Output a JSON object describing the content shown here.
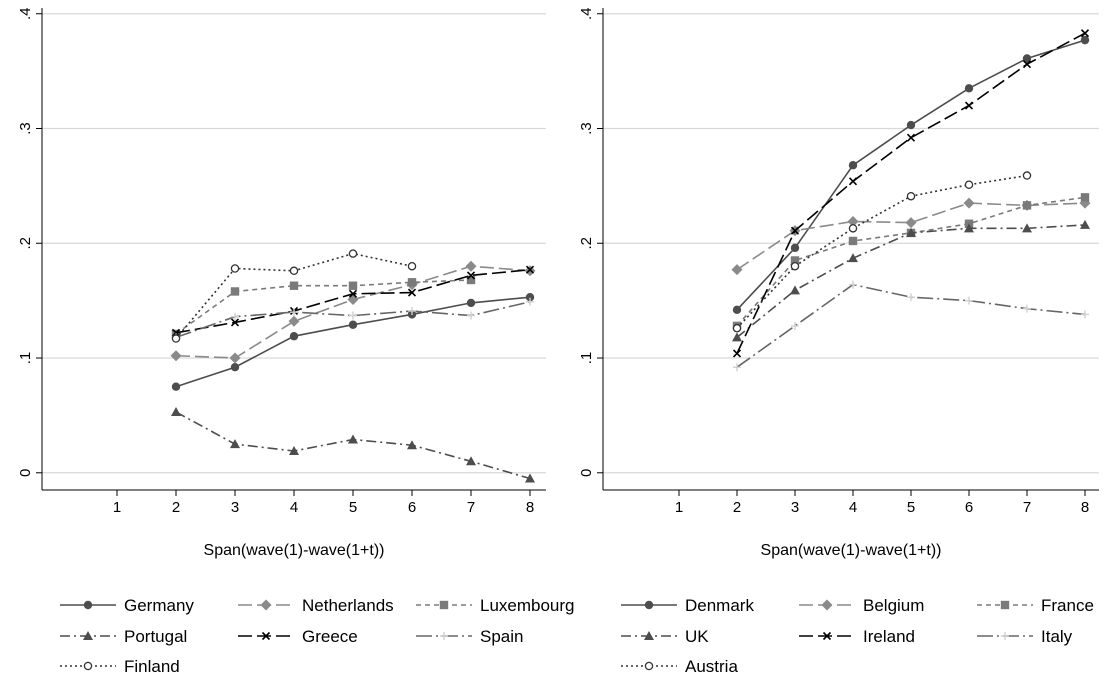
{
  "chart_data": [
    {
      "type": "line",
      "title": "",
      "xlabel": "Span(wave(1)-wave(1+t))",
      "ylabel": "",
      "xlim": [
        0,
        8
      ],
      "ylim": [
        -0.015,
        0.405
      ],
      "xticks": [
        1,
        2,
        3,
        4,
        5,
        6,
        7,
        8
      ],
      "xtick_labels": [
        "1",
        "2",
        "3",
        "4",
        "5",
        "6",
        "7",
        "8"
      ],
      "yticks": [
        0,
        0.1,
        0.2,
        0.3,
        0.4
      ],
      "ytick_labels": [
        "0",
        ".1",
        ".2",
        ".3",
        ".4"
      ],
      "grid": "horizontal",
      "legend_position": "bottom",
      "legend_columns": 3,
      "series": [
        {
          "name": "Germany",
          "color": "#4d4d4d",
          "dash": "solid",
          "marker": "circle",
          "x": [
            2,
            3,
            4,
            5,
            6,
            7,
            8
          ],
          "y": [
            0.075,
            0.092,
            0.119,
            0.129,
            0.138,
            0.148,
            0.153
          ]
        },
        {
          "name": "Netherlands",
          "color": "#8a8a8a",
          "dash": "longdash",
          "marker": "diamond",
          "x": [
            2,
            3,
            4,
            5,
            6,
            7,
            8
          ],
          "y": [
            0.102,
            0.1,
            0.132,
            0.151,
            0.164,
            0.18,
            0.176
          ]
        },
        {
          "name": "Luxembourg",
          "color": "#7a7a7a",
          "dash": "shortdash",
          "marker": "square",
          "x": [
            2,
            3,
            4,
            5,
            6,
            7
          ],
          "y": [
            0.121,
            0.158,
            0.163,
            0.163,
            0.166,
            0.168
          ]
        },
        {
          "name": "Portugal",
          "color": "#4d4d4d",
          "dash": "dashdot",
          "marker": "triangle",
          "x": [
            2,
            3,
            4,
            5,
            6,
            7,
            8
          ],
          "y": [
            0.053,
            0.025,
            0.019,
            0.029,
            0.024,
            0.01,
            -0.005
          ]
        },
        {
          "name": "Greece",
          "color": "#000000",
          "dash": "longdash",
          "marker": "x",
          "x": [
            2,
            3,
            4,
            5,
            6,
            7,
            8
          ],
          "y": [
            0.122,
            0.131,
            0.141,
            0.156,
            0.157,
            0.172,
            0.177
          ]
        },
        {
          "name": "Spain",
          "color": "#666666",
          "dash": "longdashdot",
          "marker": "plus",
          "x": [
            2,
            3,
            4,
            5,
            6,
            7,
            8
          ],
          "y": [
            0.118,
            0.136,
            0.14,
            0.137,
            0.141,
            0.137,
            0.149
          ]
        },
        {
          "name": "Finland",
          "color": "#333333",
          "dash": "dot",
          "marker": "hollowcircle",
          "x": [
            2,
            3,
            4,
            5,
            6
          ],
          "y": [
            0.117,
            0.178,
            0.176,
            0.191,
            0.18
          ]
        }
      ]
    },
    {
      "type": "line",
      "title": "",
      "xlabel": "Span(wave(1)-wave(1+t))",
      "ylabel": "",
      "xlim": [
        0,
        8
      ],
      "ylim": [
        -0.015,
        0.405
      ],
      "xticks": [
        1,
        2,
        3,
        4,
        5,
        6,
        7,
        8
      ],
      "xtick_labels": [
        "1",
        "2",
        "3",
        "4",
        "5",
        "6",
        "7",
        "8"
      ],
      "yticks": [
        0,
        0.1,
        0.2,
        0.3,
        0.4
      ],
      "ytick_labels": [
        "0",
        ".1",
        ".2",
        ".3",
        ".4"
      ],
      "grid": "horizontal",
      "legend_position": "bottom",
      "legend_columns": 3,
      "series": [
        {
          "name": "Denmark",
          "color": "#4d4d4d",
          "dash": "solid",
          "marker": "circle",
          "x": [
            2,
            3,
            4,
            5,
            6,
            7,
            8
          ],
          "y": [
            0.142,
            0.196,
            0.268,
            0.303,
            0.335,
            0.361,
            0.377
          ]
        },
        {
          "name": "Belgium",
          "color": "#8a8a8a",
          "dash": "longdash",
          "marker": "diamond",
          "x": [
            2,
            3,
            4,
            5,
            6,
            7,
            8
          ],
          "y": [
            0.177,
            0.211,
            0.219,
            0.218,
            0.235,
            0.233,
            0.235
          ]
        },
        {
          "name": "France",
          "color": "#7a7a7a",
          "dash": "shortdash",
          "marker": "square",
          "x": [
            2,
            3,
            4,
            5,
            6,
            7,
            8
          ],
          "y": [
            0.128,
            0.185,
            0.202,
            0.209,
            0.217,
            0.233,
            0.24
          ]
        },
        {
          "name": "UK",
          "color": "#4d4d4d",
          "dash": "dashdot",
          "marker": "triangle",
          "x": [
            2,
            3,
            4,
            5,
            6,
            7,
            8
          ],
          "y": [
            0.118,
            0.159,
            0.187,
            0.209,
            0.213,
            0.213,
            0.216
          ]
        },
        {
          "name": "Ireland",
          "color": "#000000",
          "dash": "longdash",
          "marker": "x",
          "x": [
            2,
            3,
            4,
            5,
            6,
            7,
            8
          ],
          "y": [
            0.104,
            0.211,
            0.254,
            0.292,
            0.32,
            0.356,
            0.383
          ]
        },
        {
          "name": "Italy",
          "color": "#666666",
          "dash": "longdashdot",
          "marker": "plus",
          "x": [
            2,
            3,
            4,
            5,
            6,
            7,
            8
          ],
          "y": [
            0.092,
            0.128,
            0.164,
            0.153,
            0.15,
            0.143,
            0.138
          ]
        },
        {
          "name": "Austria",
          "color": "#333333",
          "dash": "dot",
          "marker": "hollowcircle",
          "x": [
            2,
            3,
            4,
            5,
            6,
            7
          ],
          "y": [
            0.126,
            0.18,
            0.213,
            0.241,
            0.251,
            0.259
          ]
        }
      ]
    }
  ]
}
